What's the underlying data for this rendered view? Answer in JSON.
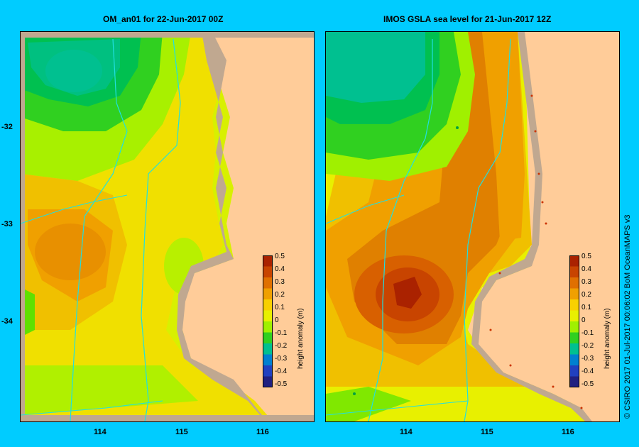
{
  "panels": [
    {
      "title": "OM_an01  for 22-Jun-2017 00Z"
    },
    {
      "title": "IMOS GSLA sea level  for 21-Jun-2017 12Z"
    }
  ],
  "axes": {
    "x_ticks": [
      "114",
      "115",
      "116"
    ],
    "y_ticks": [
      "-32",
      "-33",
      "-34"
    ]
  },
  "colorbar": {
    "title": "height anomaly (m)",
    "ticks": [
      "0.5",
      "0.4",
      "0.3",
      "0.2",
      "0.1",
      "0",
      "-0.1",
      "-0.2",
      "-0.3",
      "-0.4",
      "-0.5"
    ],
    "colors": [
      "#aa2200",
      "#c84400",
      "#e07000",
      "#f0a000",
      "#f8d000",
      "#e8f000",
      "#a0f000",
      "#30d020",
      "#00c090",
      "#0080d0",
      "#2040c0",
      "#202080"
    ]
  },
  "credit": "© CSIRO 2017   01-Jul-2017 00:06:02 BoM OceanMAPS v3"
}
